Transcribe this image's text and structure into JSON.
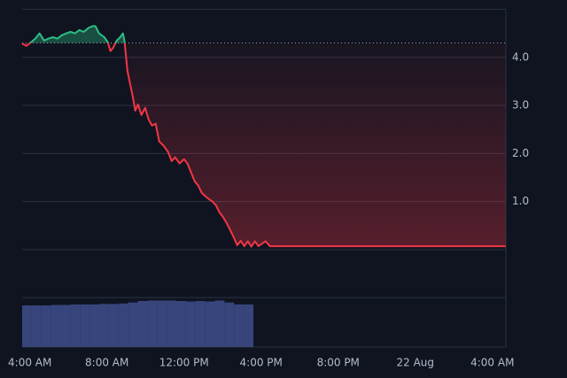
{
  "chart_data": {
    "type": "line",
    "x": [
      -0.41,
      -0.18,
      0.05,
      0.28,
      0.5,
      0.74,
      0.97,
      1.2,
      1.43,
      1.66,
      1.89,
      2.11,
      2.34,
      2.57,
      2.8,
      3.03,
      3.26,
      3.4,
      3.59,
      3.86,
      4.05,
      4.18,
      4.32,
      4.51,
      4.69,
      4.83,
      4.92,
      5.06,
      5.2,
      5.33,
      5.47,
      5.61,
      5.79,
      5.98,
      6.16,
      6.34,
      6.53,
      6.71,
      6.94,
      7.17,
      7.36,
      7.54,
      7.77,
      8.0,
      8.18,
      8.37,
      8.55,
      8.74,
      8.92,
      9.1,
      9.29,
      9.47,
      9.66,
      9.84,
      10.02,
      10.21,
      10.39,
      10.57,
      10.76,
      10.94,
      11.13,
      11.31,
      11.49,
      11.68,
      11.86,
      12.23,
      12.46,
      24.69
    ],
    "values": [
      4.29,
      4.24,
      4.31,
      4.39,
      4.5,
      4.35,
      4.39,
      4.42,
      4.39,
      4.46,
      4.5,
      4.53,
      4.5,
      4.57,
      4.53,
      4.61,
      4.65,
      4.65,
      4.5,
      4.42,
      4.31,
      4.13,
      4.2,
      4.35,
      4.42,
      4.5,
      4.31,
      3.72,
      3.45,
      3.21,
      2.89,
      3.02,
      2.8,
      2.95,
      2.71,
      2.58,
      2.62,
      2.25,
      2.16,
      2.03,
      1.84,
      1.92,
      1.79,
      1.88,
      1.79,
      1.6,
      1.42,
      1.33,
      1.18,
      1.11,
      1.05,
      1.0,
      0.92,
      0.77,
      0.68,
      0.55,
      0.41,
      0.26,
      0.09,
      0.18,
      0.07,
      0.17,
      0.06,
      0.17,
      0.07,
      0.17,
      0.07,
      0.07
    ],
    "baseline": 4.3,
    "up_color": "#2ebd85",
    "down_color": "#f23645",
    "xlim": [
      -0.4,
      24.7
    ],
    "xticks": [
      {
        "value": 0,
        "label": "4:00 AM"
      },
      {
        "value": 4,
        "label": "8:00 AM"
      },
      {
        "value": 8,
        "label": "12:00 PM"
      },
      {
        "value": 12,
        "label": "4:00 PM"
      },
      {
        "value": 16,
        "label": "8:00 PM"
      },
      {
        "value": 20,
        "label": "22 Aug"
      },
      {
        "value": 24,
        "label": "4:00 AM"
      }
    ],
    "ylim": [
      -2.03,
      5.01
    ],
    "yticks": [
      {
        "value": 1,
        "label": "1.0"
      },
      {
        "value": 2,
        "label": "2.0"
      },
      {
        "value": 3,
        "label": "3.0"
      },
      {
        "value": 4,
        "label": "4.0"
      }
    ],
    "ygrid": [
      -1,
      0,
      1,
      2,
      3,
      4,
      5
    ],
    "volume": {
      "type": "histogram",
      "bins": [
        -0.4,
        0.1,
        0.6,
        1.1,
        1.6,
        2.1,
        2.6,
        3.1,
        3.6,
        4.1,
        4.6,
        5.1,
        5.6,
        6.1,
        6.6,
        7.1,
        7.6,
        8.1,
        8.6,
        9.1,
        9.6,
        10.1,
        10.6,
        11.1,
        11.6
      ],
      "values": [
        84,
        84,
        84,
        85,
        85,
        86,
        86,
        86,
        87,
        87,
        88,
        90,
        93,
        94,
        94,
        94,
        93,
        92,
        93,
        92,
        94,
        90,
        86,
        86
      ],
      "ylim": [
        0,
        100
      ],
      "color": "#37457c"
    }
  }
}
